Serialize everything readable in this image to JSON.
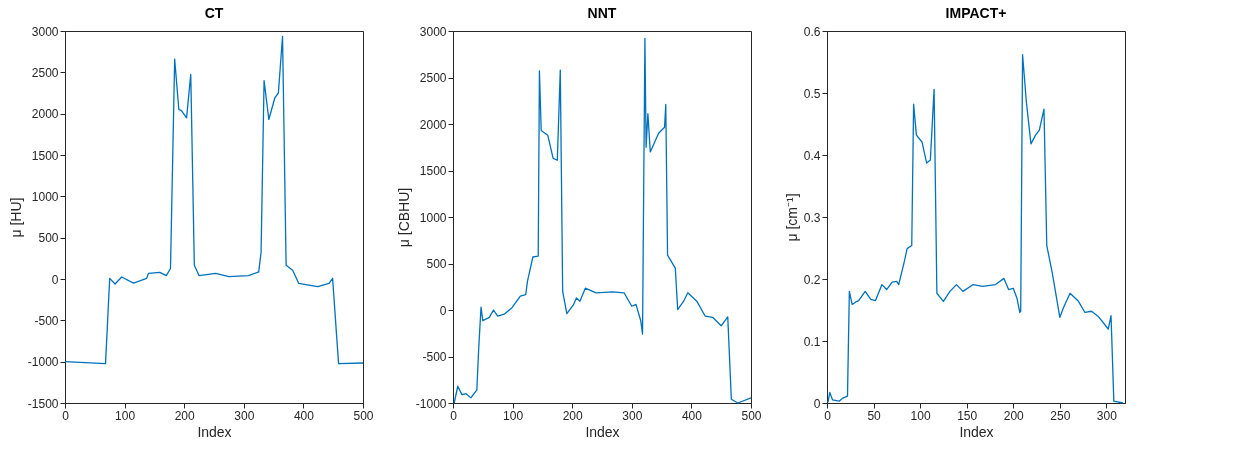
{
  "chart_data": [
    {
      "type": "line",
      "title": "CT",
      "xlabel": "Index",
      "ylabel": "μ [HU]",
      "xlim": [
        0,
        500
      ],
      "ylim": [
        -1500,
        3000
      ],
      "xticks": [
        0,
        100,
        200,
        300,
        400,
        500
      ],
      "yticks": [
        -1500,
        -1000,
        -500,
        0,
        500,
        1000,
        1500,
        2000,
        2500,
        3000
      ],
      "x": [
        0,
        68,
        75,
        84,
        95,
        115,
        137,
        140,
        159,
        170,
        177,
        184,
        191,
        195,
        204,
        211,
        217,
        225,
        253,
        275,
        308,
        325,
        329,
        334,
        342,
        352,
        358,
        365,
        371,
        382,
        392,
        424,
        443,
        449,
        459,
        500
      ],
      "series": [
        {
          "color": "#0072bd",
          "values": [
            -1000,
            -1024,
            8,
            -60,
            24,
            -50,
            8,
            67,
            80,
            40,
            127,
            2660,
            2050,
            2040,
            1950,
            2475,
            167,
            40,
            67,
            28,
            40,
            87,
            325,
            2400,
            1930,
            2190,
            2250,
            2936,
            167,
            107,
            -52,
            -91,
            -52,
            8,
            -1024,
            -1016
          ]
        }
      ]
    },
    {
      "type": "line",
      "title": "NNT",
      "xlabel": "Index",
      "ylabel": "μ [CBHU]",
      "xlim": [
        0,
        500
      ],
      "ylim": [
        -1000,
        3000
      ],
      "xticks": [
        0,
        100,
        200,
        300,
        400,
        500
      ],
      "yticks": [
        -1000,
        -500,
        0,
        500,
        1000,
        1500,
        2000,
        2500,
        3000
      ],
      "x": [
        2,
        8,
        15,
        22,
        30,
        40,
        43,
        47,
        50,
        61,
        68,
        75,
        86,
        99,
        113,
        122,
        125,
        134,
        143,
        145,
        148,
        159,
        168,
        175,
        180,
        184,
        191,
        202,
        207,
        213,
        222,
        240,
        268,
        287,
        300,
        307,
        315,
        318,
        322,
        324,
        327,
        331,
        345,
        355,
        357,
        360,
        373,
        377,
        387,
        394,
        409,
        423,
        436,
        450,
        461,
        467,
        478,
        500
      ],
      "series": [
        {
          "color": "#0072bd",
          "values": [
            -1000,
            -820,
            -910,
            -900,
            -945,
            -860,
            -430,
            30,
            -115,
            -80,
            0,
            -65,
            -45,
            25,
            150,
            165,
            310,
            570,
            580,
            2570,
            1930,
            1880,
            1630,
            1610,
            2580,
            200,
            -40,
            55,
            130,
            95,
            235,
            185,
            195,
            185,
            40,
            60,
            -115,
            -260,
            2920,
            1750,
            2110,
            1700,
            1900,
            1965,
            2210,
            590,
            450,
            5,
            95,
            185,
            95,
            -65,
            -80,
            -170,
            -75,
            -960,
            -1000,
            -945
          ]
        }
      ]
    },
    {
      "type": "line",
      "title": "IMPACT+",
      "xlabel": "Index",
      "ylabel": "μ [cm⁻¹]",
      "xlim": [
        0,
        320
      ],
      "ylim": [
        0,
        0.6
      ],
      "xticks": [
        0,
        50,
        100,
        150,
        200,
        250,
        300
      ],
      "yticks": [
        0,
        0.1,
        0.2,
        0.3,
        0.4,
        0.5,
        0.6
      ],
      "x": [
        1,
        3,
        6,
        13,
        17,
        22,
        24,
        27,
        31,
        34,
        41,
        47,
        52,
        59,
        64,
        70,
        75,
        77,
        83,
        86,
        91,
        93,
        96,
        102,
        107,
        111,
        115,
        118,
        125,
        132,
        139,
        146,
        157,
        167,
        181,
        190,
        195,
        200,
        204,
        207,
        208,
        210,
        214,
        219,
        224,
        228,
        233,
        236,
        242,
        250,
        254,
        261,
        270,
        277,
        284,
        291,
        298,
        302,
        305,
        308,
        318
      ],
      "series": [
        {
          "color": "#0072bd",
          "values": [
            0.001,
            0.017,
            0.005,
            0.003,
            0.008,
            0.011,
            0.18,
            0.159,
            0.163,
            0.165,
            0.18,
            0.167,
            0.165,
            0.191,
            0.183,
            0.195,
            0.196,
            0.191,
            0.228,
            0.249,
            0.254,
            0.482,
            0.432,
            0.421,
            0.387,
            0.392,
            0.506,
            0.177,
            0.164,
            0.18,
            0.191,
            0.18,
            0.191,
            0.188,
            0.191,
            0.201,
            0.183,
            0.185,
            0.169,
            0.146,
            0.148,
            0.562,
            0.487,
            0.418,
            0.432,
            0.44,
            0.474,
            0.254,
            0.209,
            0.138,
            0.154,
            0.177,
            0.164,
            0.146,
            0.148,
            0.14,
            0.127,
            0.119,
            0.141,
            0.003,
            0.0
          ]
        }
      ]
    }
  ]
}
